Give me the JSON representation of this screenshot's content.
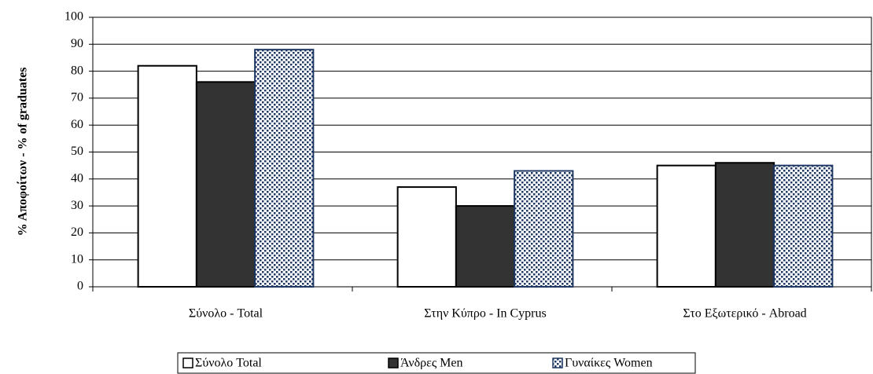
{
  "chart_data": {
    "type": "bar",
    "y_axis_label": "% Αποφοίτων - % of graduates",
    "categories": [
      "Σύνολο - Total",
      "Στην Κύπρο - In Cyprus",
      "Στο Εξωτερικό - Abroad"
    ],
    "series": [
      {
        "name": "Σύνολο Total",
        "color": "#ffffff",
        "values": [
          82,
          37,
          45
        ]
      },
      {
        "name": "Άνδρες Men",
        "color": "#333333",
        "values": [
          76,
          30,
          46
        ]
      },
      {
        "name": "Γυναίκες Women",
        "color": "#1f3864",
        "values": [
          88,
          43,
          45
        ]
      }
    ],
    "ylim": [
      0,
      100
    ],
    "yticks": [
      0,
      10,
      20,
      30,
      40,
      50,
      60,
      70,
      80,
      90,
      100
    ],
    "grid": true,
    "legend": "bottom"
  }
}
